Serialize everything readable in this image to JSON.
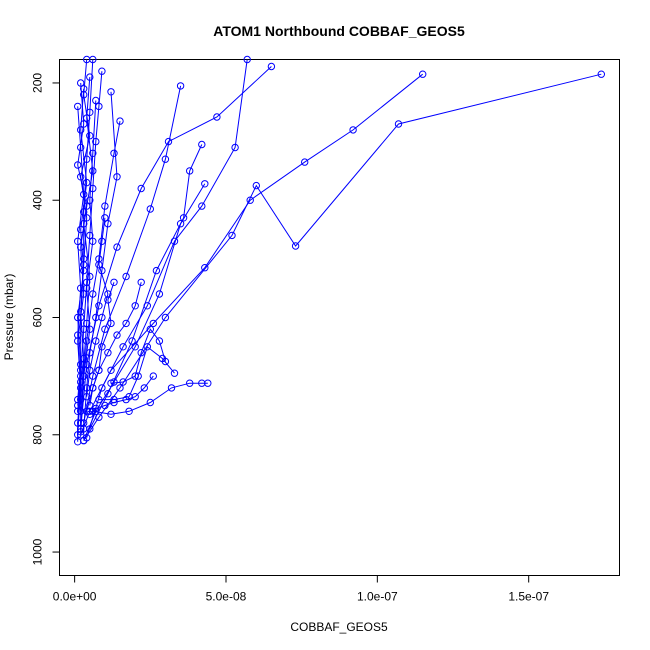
{
  "chart_data": {
    "type": "line",
    "title": "ATOM1 Northbound COBBAF_GEOS5",
    "xlabel": "COBBAF_GEOS5",
    "ylabel": "Pressure (mbar)",
    "xlim": [
      -5e-09,
      1.8e-07
    ],
    "ylim": [
      1040,
      160
    ],
    "y_inverted": true,
    "x_ticks": [
      0,
      5e-08,
      1e-07,
      1.5e-07
    ],
    "x_tick_labels": [
      "0.0e+00",
      "5.0e-08",
      "1.0e-07",
      "1.5e-07"
    ],
    "y_ticks": [
      200,
      400,
      600,
      800,
      1000
    ],
    "y_tick_labels": [
      "200",
      "400",
      "600",
      "800",
      "1000"
    ],
    "grid": false,
    "legend": "none",
    "color": "#0000ff",
    "marker": "open-circle",
    "series": [
      {
        "x": [
          1.74e-07,
          1.07e-07,
          7.3e-08,
          6e-08,
          5.2e-08,
          3e-08,
          1.5e-08,
          8e-09,
          3e-09
        ],
        "y": [
          185,
          270,
          478,
          375,
          460,
          600,
          720,
          770,
          810
        ]
      },
      {
        "x": [
          1.15e-07,
          9.2e-08,
          7.6e-08,
          5.8e-08,
          4.3e-08,
          2.6e-08,
          1.2e-08,
          5e-09,
          2e-09
        ],
        "y": [
          185,
          280,
          335,
          400,
          515,
          610,
          690,
          760,
          800
        ]
      },
      {
        "x": [
          6.5e-08,
          4.7e-08,
          3.1e-08,
          2.2e-08,
          1.4e-08,
          8e-09,
          4e-09,
          2e-09
        ],
        "y": [
          172,
          258,
          300,
          380,
          480,
          580,
          680,
          790
        ]
      },
      {
        "x": [
          5.7e-08,
          5.3e-08,
          4.2e-08,
          3.3e-08,
          2.4e-08,
          1.6e-08,
          9e-09,
          4e-09
        ],
        "y": [
          160,
          310,
          410,
          470,
          580,
          650,
          720,
          805
        ]
      },
      {
        "x": [
          3.5e-08,
          3e-08,
          2.5e-08,
          1.7e-08,
          1e-08,
          6e-09,
          3e-09
        ],
        "y": [
          205,
          330,
          415,
          530,
          620,
          700,
          780
        ]
      },
      {
        "x": [
          4.2e-08,
          3.8e-08,
          3.6e-08,
          2.7e-08,
          1.9e-08,
          1.1e-08,
          5e-09
        ],
        "y": [
          305,
          350,
          430,
          520,
          640,
          730,
          790
        ]
      },
      {
        "x": [
          4.3e-08,
          3.5e-08,
          2.8e-08,
          2e-08,
          1.3e-08,
          7e-09,
          3e-09
        ],
        "y": [
          372,
          440,
          560,
          650,
          710,
          760,
          810
        ]
      },
      {
        "x": [
          4.4e-08,
          4.2e-08,
          3.8e-08,
          3.2e-08,
          2.5e-08,
          1.8e-08,
          1.2e-08,
          6e-09
        ],
        "y": [
          712,
          712,
          712,
          720,
          745,
          760,
          765,
          760
        ]
      },
      {
        "x": [
          3.3e-08,
          2.9e-08,
          2.4e-08,
          2.1e-08,
          1.8e-08,
          1.3e-08,
          8e-09
        ],
        "y": [
          695,
          670,
          650,
          700,
          735,
          740,
          740
        ]
      },
      {
        "x": [
          3e-08,
          2.8e-08,
          2.5e-08,
          2.2e-08,
          2e-08,
          1.6e-08,
          1.2e-08
        ],
        "y": [
          675,
          640,
          620,
          660,
          700,
          710,
          712
        ]
      },
      {
        "x": [
          1.5e-08,
          1.3e-08,
          1e-08,
          8e-09,
          6e-09,
          4e-09,
          3e-09,
          2e-09
        ],
        "y": [
          265,
          320,
          410,
          500,
          560,
          640,
          700,
          760
        ]
      },
      {
        "x": [
          1.2e-08,
          1.4e-08,
          1.1e-08,
          9e-09,
          7e-09,
          5e-09,
          4e-09,
          3e-09
        ],
        "y": [
          215,
          360,
          440,
          520,
          600,
          660,
          720,
          790
        ]
      },
      {
        "x": [
          9e-09,
          8e-09,
          7e-09,
          6e-09,
          5e-09,
          4e-09,
          3e-09,
          2e-09,
          2e-09
        ],
        "y": [
          180,
          240,
          300,
          380,
          460,
          540,
          620,
          700,
          780
        ]
      },
      {
        "x": [
          6e-09,
          5e-09,
          4e-09,
          3e-09,
          3e-09,
          2e-09,
          2e-09,
          1e-09
        ],
        "y": [
          160,
          250,
          330,
          420,
          500,
          600,
          690,
          760
        ]
      },
      {
        "x": [
          2.2e-08,
          2e-08,
          1.7e-08,
          1.4e-08,
          1.1e-08,
          8e-09,
          6e-09,
          4e-09
        ],
        "y": [
          540,
          580,
          610,
          630,
          660,
          690,
          720,
          760
        ]
      },
      {
        "x": [
          2.6e-08,
          2.3e-08,
          2e-08,
          1.7e-08,
          1.3e-08,
          1e-08,
          7e-09,
          5e-09
        ],
        "y": [
          700,
          720,
          735,
          740,
          745,
          750,
          755,
          765
        ]
      },
      {
        "x": [
          4e-09,
          3e-09,
          5e-09,
          2e-09,
          4e-09,
          3e-09,
          2e-09,
          3e-09,
          1e-09
        ],
        "y": [
          160,
          220,
          290,
          360,
          430,
          510,
          590,
          670,
          750
        ]
      },
      {
        "x": [
          2e-09,
          3e-09,
          1e-09,
          4e-09,
          2e-09,
          3e-09,
          1e-09,
          2e-09,
          1e-09
        ],
        "y": [
          200,
          270,
          340,
          410,
          480,
          560,
          640,
          720,
          800
        ]
      },
      {
        "x": [
          1e-09,
          2e-09,
          3e-09,
          1e-09,
          2e-09,
          1e-09,
          2e-09,
          1e-09,
          1e-09
        ],
        "y": [
          240,
          310,
          390,
          470,
          550,
          630,
          710,
          780,
          812
        ]
      },
      {
        "x": [
          5e-09,
          4e-09,
          6e-09,
          3e-09,
          5e-09,
          4e-09,
          3e-09,
          2e-09
        ],
        "y": [
          190,
          260,
          350,
          440,
          530,
          610,
          680,
          740
        ]
      },
      {
        "x": [
          7e-09,
          6e-09,
          5e-09,
          6e-09,
          4e-09,
          5e-09,
          3e-09,
          2e-09
        ],
        "y": [
          230,
          320,
          400,
          470,
          550,
          620,
          700,
          795
        ]
      },
      {
        "x": [
          3e-09,
          2e-09,
          4e-09,
          2e-09,
          3e-09,
          1e-09,
          2e-09,
          1e-09
        ],
        "y": [
          210,
          280,
          370,
          450,
          520,
          600,
          680,
          740
        ]
      },
      {
        "x": [
          1e-08,
          9e-09,
          8e-09,
          1.1e-08,
          9e-09,
          7e-09,
          5e-09,
          4e-09
        ],
        "y": [
          430,
          470,
          510,
          560,
          600,
          640,
          690,
          735
        ]
      },
      {
        "x": [
          1.3e-08,
          1.1e-08,
          1.2e-08,
          9e-09,
          8e-09,
          6e-09,
          5e-09
        ],
        "y": [
          540,
          570,
          610,
          650,
          690,
          720,
          750
        ]
      }
    ]
  }
}
